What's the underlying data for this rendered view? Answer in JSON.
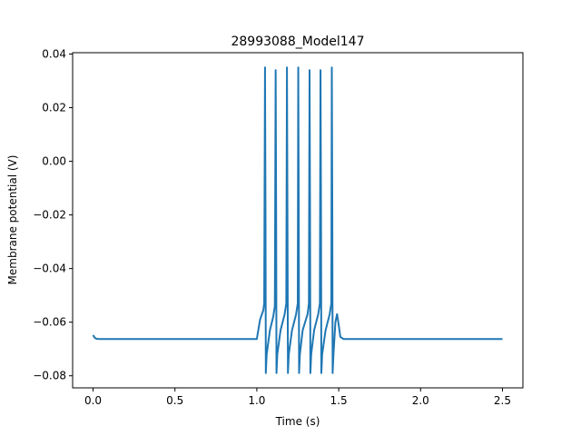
{
  "chart_data": {
    "type": "line",
    "title": "28993088_Model147",
    "xlabel": "Time (s)",
    "ylabel": "Membrane potential (V)",
    "xlim": [
      -0.125,
      2.625
    ],
    "ylim": [
      -0.0845,
      0.0405
    ],
    "xticks": [
      0.0,
      0.5,
      1.0,
      1.5,
      2.0,
      2.5
    ],
    "xtick_labels": [
      "0.0",
      "0.5",
      "1.0",
      "1.5",
      "2.0",
      "2.5"
    ],
    "yticks": [
      -0.08,
      -0.06,
      -0.04,
      -0.02,
      0.0,
      0.02,
      0.04
    ],
    "ytick_labels": [
      "−0.08",
      "−0.06",
      "−0.04",
      "−0.02",
      "0.00",
      "0.02",
      "0.04"
    ],
    "grid": false,
    "color": "#1f77b4",
    "series": [
      {
        "x": [
          0.0,
          0.01,
          0.02,
          0.04,
          0.1,
          0.5,
          1.0,
          1.0,
          1.02,
          1.04,
          1.045,
          1.05,
          1.053,
          1.055,
          1.06,
          1.08,
          1.1,
          1.11,
          1.115,
          1.118,
          1.12,
          1.125,
          1.145,
          1.17,
          1.18,
          1.184,
          1.187,
          1.19,
          1.195,
          1.215,
          1.24,
          1.25,
          1.253,
          1.256,
          1.258,
          1.263,
          1.28,
          1.31,
          1.318,
          1.322,
          1.325,
          1.327,
          1.332,
          1.35,
          1.375,
          1.385,
          1.389,
          1.392,
          1.394,
          1.399,
          1.42,
          1.445,
          1.455,
          1.458,
          1.461,
          1.463,
          1.468,
          1.48,
          1.49,
          1.5,
          1.51,
          1.53,
          1.6,
          2.0,
          2.5
        ],
        "y": [
          -0.0648,
          -0.0658,
          -0.0662,
          -0.0663,
          -0.0663,
          -0.0663,
          -0.0663,
          -0.0663,
          -0.059,
          -0.0555,
          -0.053,
          0.035,
          -0.02,
          -0.079,
          -0.072,
          -0.063,
          -0.058,
          -0.054,
          0.034,
          -0.02,
          -0.079,
          -0.072,
          -0.063,
          -0.057,
          -0.053,
          0.035,
          -0.02,
          -0.079,
          -0.072,
          -0.063,
          -0.057,
          -0.053,
          0.035,
          -0.02,
          -0.079,
          -0.072,
          -0.063,
          -0.057,
          -0.053,
          0.034,
          -0.02,
          -0.079,
          -0.072,
          -0.063,
          -0.057,
          -0.053,
          0.034,
          -0.02,
          -0.079,
          -0.072,
          -0.063,
          -0.057,
          -0.053,
          0.035,
          -0.02,
          -0.079,
          -0.072,
          -0.06,
          -0.057,
          -0.061,
          -0.0655,
          -0.0663,
          -0.0663,
          -0.0663,
          -0.0663
        ]
      }
    ]
  }
}
